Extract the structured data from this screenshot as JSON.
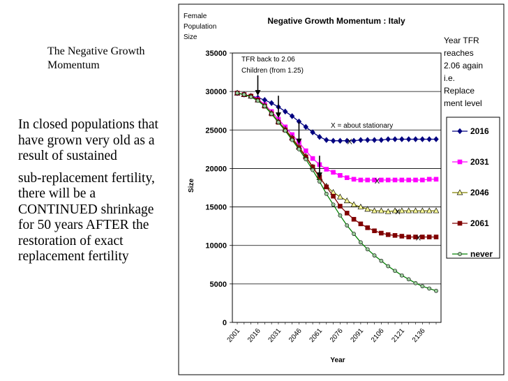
{
  "slide": {
    "title": "The Negative Growth Momentum",
    "paragraph1": "In closed populations that have grown very old as a result of sustained",
    "paragraph2": "sub-replacement fertility, there will be a CONTINUED shrinkage for 50 years AFTER the restoration of exact replacement fertility"
  },
  "chart_data": {
    "type": "line",
    "title": "Negative Growth Momentum : Italy",
    "ylabel_top": [
      "Female",
      "Population",
      "Size"
    ],
    "ylabel": "Size",
    "xlabel": "Year",
    "ylim": [
      0,
      35000
    ],
    "yticks": [
      "0",
      "5000",
      "10000",
      "15000",
      "20000",
      "25000",
      "30000",
      "35000"
    ],
    "x": [
      2001,
      2006,
      2011,
      2016,
      2021,
      2026,
      2031,
      2036,
      2041,
      2046,
      2051,
      2056,
      2061,
      2066,
      2071,
      2076,
      2081,
      2086,
      2091,
      2096,
      2101,
      2106,
      2111,
      2116,
      2121,
      2126,
      2131,
      2136,
      2141,
      2146
    ],
    "xticks": [
      "2001",
      "2016",
      "2031",
      "2046",
      "2061",
      "2076",
      "2091",
      "2106",
      "2121",
      "2136"
    ],
    "series": [
      {
        "name": "2016",
        "color": "#000080",
        "marker": "diamond",
        "values": [
          29800,
          29600,
          29400,
          29200,
          28900,
          28500,
          28000,
          27400,
          26800,
          26100,
          25400,
          24700,
          24100,
          23700,
          23600,
          23600,
          23600,
          23600,
          23700,
          23700,
          23700,
          23700,
          23800,
          23800,
          23800,
          23800,
          23800,
          23800,
          23800,
          23800
        ]
      },
      {
        "name": "2031",
        "color": "#ff00ff",
        "marker": "square",
        "values": [
          29800,
          29600,
          29400,
          29000,
          28300,
          27400,
          26400,
          25400,
          24400,
          23400,
          22300,
          21300,
          20500,
          19900,
          19500,
          19100,
          18800,
          18600,
          18500,
          18500,
          18500,
          18500,
          18500,
          18500,
          18500,
          18500,
          18500,
          18500,
          18600,
          18600
        ]
      },
      {
        "name": "2046",
        "color": "#808000",
        "marker": "triangle",
        "values": [
          29800,
          29600,
          29400,
          28900,
          28200,
          27200,
          26100,
          25100,
          24000,
          22800,
          21600,
          20200,
          18800,
          17700,
          16900,
          16300,
          15800,
          15300,
          15000,
          14700,
          14500,
          14500,
          14400,
          14500,
          14500,
          14500,
          14500,
          14500,
          14500,
          14500
        ]
      },
      {
        "name": "2061",
        "color": "#800000",
        "marker": "square",
        "values": [
          29800,
          29600,
          29400,
          28900,
          28100,
          27100,
          26000,
          25000,
          23900,
          22700,
          21500,
          20200,
          18900,
          17600,
          16400,
          15100,
          14200,
          13400,
          12800,
          12300,
          11900,
          11600,
          11400,
          11300,
          11200,
          11100,
          11100,
          11100,
          11100,
          11100
        ]
      },
      {
        "name": "never",
        "color": "#008000",
        "marker": "circle",
        "values": [
          29800,
          29600,
          29300,
          28800,
          28100,
          27100,
          26000,
          24900,
          23700,
          22500,
          21200,
          19800,
          18300,
          16700,
          15300,
          13900,
          12600,
          11500,
          10400,
          9500,
          8700,
          8000,
          7300,
          6700,
          6100,
          5600,
          5100,
          4700,
          4400,
          4100
        ]
      }
    ],
    "annotations": {
      "tfr_note": [
        "TFR back to 2.06",
        "Children (from 1.25)"
      ],
      "stationary_note": "X = about stationary",
      "year_note": [
        "Year TFR",
        "reaches",
        "2.06 again",
        "i.e.",
        "Replace",
        "ment level"
      ],
      "x_mark": "X",
      "arrow_years": [
        2016,
        2031,
        2046,
        2061
      ],
      "stationary_marks": [
        {
          "x": 2083,
          "y": 23600
        },
        {
          "x": 2103,
          "y": 18500
        },
        {
          "x": 2118,
          "y": 14500
        },
        {
          "x": 2133,
          "y": 11100
        }
      ]
    }
  }
}
